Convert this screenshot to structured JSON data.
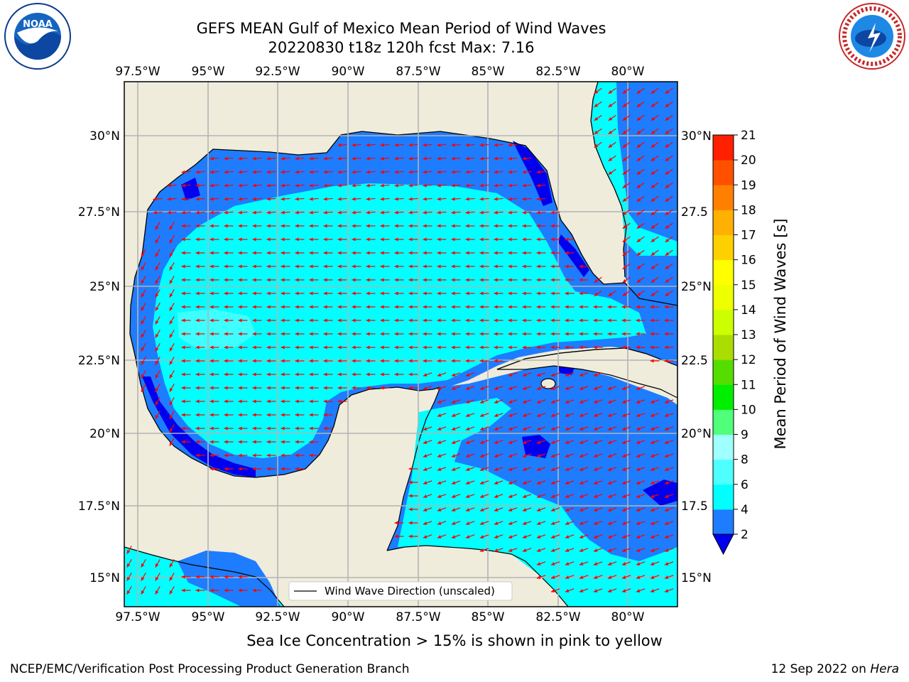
{
  "header": {
    "title_line1": "GEFS MEAN Gulf of Mexico Mean Period of Wind Waves",
    "title_line2": "20220830 t18z 120h fcst   Max: 7.16"
  },
  "logos": {
    "left": {
      "icon": "noaa-logo",
      "text": "NOAA"
    },
    "right": {
      "icon": "national-weather-service-logo",
      "text": "NATIONAL WEATHER SERVICE"
    }
  },
  "map": {
    "region": "Gulf of Mexico",
    "lon_labels": [
      "97.5°W",
      "95°W",
      "92.5°W",
      "90°W",
      "87.5°W",
      "85°W",
      "82.5°W",
      "80°W"
    ],
    "lat_labels_left": [
      "30°N",
      "27.5°N",
      "25°N",
      "22.5°N",
      "20°N",
      "17.5°N",
      "15°N"
    ],
    "lat_labels_right": [
      "30°N",
      "27.5",
      "25°N",
      "22.5",
      "20°N",
      "17.5",
      "15°N"
    ],
    "legend_label": "Wind Wave Direction (unscaled)",
    "arrow_color": "#ff0000",
    "land_color": "#efecdc",
    "ocean_colors": {
      "lt2": "#0000ee",
      "2_4": "#1e7cff",
      "4_6": "#00ffff",
      "6_8": "#4dffff"
    }
  },
  "colorbar": {
    "label": "Mean Period of Wind Waves [s]",
    "ticks": [
      "2",
      "4",
      "6",
      "8",
      "9",
      "10",
      "11",
      "12",
      "13",
      "14",
      "15",
      "16",
      "17",
      "18",
      "19",
      "20",
      "21"
    ],
    "colors": [
      "#0000ee",
      "#1e7cff",
      "#00ffff",
      "#4dffff",
      "#a0ffff",
      "#50ff7a",
      "#00ee00",
      "#55dd00",
      "#aadd00",
      "#ccff00",
      "#eeff00",
      "#ffff00",
      "#ffd000",
      "#ffb000",
      "#ff8000",
      "#ff5000",
      "#ff2000",
      "#ff0000"
    ]
  },
  "notes": {
    "sea_ice": "Sea Ice Concentration > 15% is shown in pink to yellow",
    "producer": "NCEP/EMC/Verification Post Processing Product Generation Branch",
    "date_prefix": "12 Sep 2022 on",
    "host": "Hera"
  }
}
